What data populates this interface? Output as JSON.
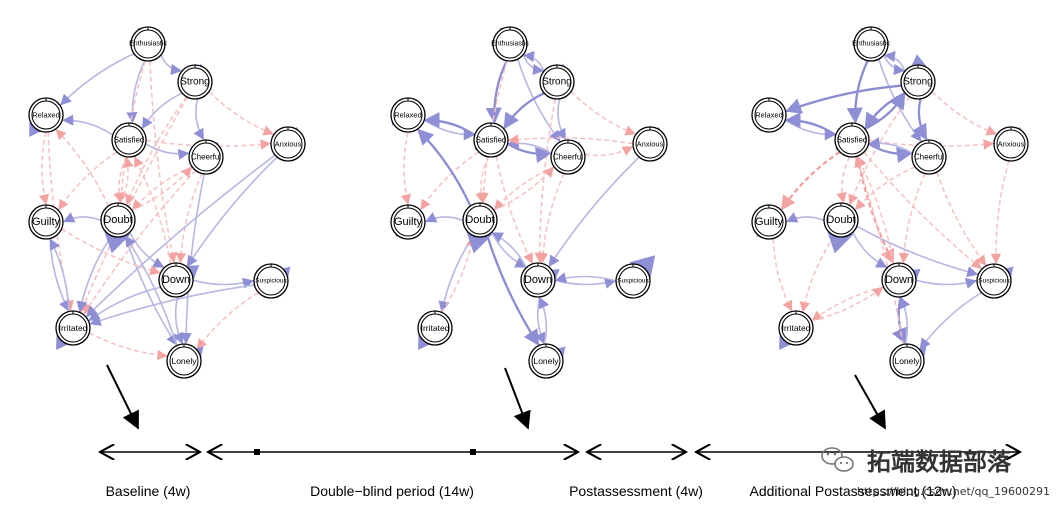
{
  "networks": [
    {
      "id": "baseline",
      "nodes": [
        {
          "id": "enthusiastic",
          "label": "Enthusiastic"
        },
        {
          "id": "strong",
          "label": "Strong"
        },
        {
          "id": "relaxed",
          "label": "Relaxed"
        },
        {
          "id": "satisfied",
          "label": "Satisfied"
        },
        {
          "id": "cheerful",
          "label": "Cheerful"
        },
        {
          "id": "anxious",
          "label": "Anxious"
        },
        {
          "id": "guilty",
          "label": "Guilty"
        },
        {
          "id": "doubt",
          "label": "Doubt"
        },
        {
          "id": "down",
          "label": "Down"
        },
        {
          "id": "suspicious",
          "label": "Suspicious"
        },
        {
          "id": "irritated",
          "label": "Irritated"
        },
        {
          "id": "lonely",
          "label": "Lonely"
        }
      ]
    },
    {
      "id": "double-blind",
      "nodes": [
        {
          "id": "enthusiastic",
          "label": "Enthusiastic"
        },
        {
          "id": "strong",
          "label": "Strong"
        },
        {
          "id": "relaxed",
          "label": "Relaxed"
        },
        {
          "id": "satisfied",
          "label": "Satisfied"
        },
        {
          "id": "cheerful",
          "label": "Cheerful"
        },
        {
          "id": "anxious",
          "label": "Anxious"
        },
        {
          "id": "guilty",
          "label": "Guilty"
        },
        {
          "id": "doubt",
          "label": "Doubt"
        },
        {
          "id": "down",
          "label": "Down"
        },
        {
          "id": "suspicious",
          "label": "Suspicious"
        },
        {
          "id": "irritated",
          "label": "Irritated"
        },
        {
          "id": "lonely",
          "label": "Lonely"
        }
      ]
    },
    {
      "id": "postassessment",
      "nodes": [
        {
          "id": "enthusiastic",
          "label": "Enthusiastic"
        },
        {
          "id": "strong",
          "label": "Strong"
        },
        {
          "id": "relaxed",
          "label": "Relaxed"
        },
        {
          "id": "satisfied",
          "label": "Satisfied"
        },
        {
          "id": "cheerful",
          "label": "Cheerful"
        },
        {
          "id": "anxious",
          "label": "Anxious"
        },
        {
          "id": "guilty",
          "label": "Guilty"
        },
        {
          "id": "doubt",
          "label": "Doubt"
        },
        {
          "id": "down",
          "label": "Down"
        },
        {
          "id": "suspicious",
          "label": "Suspicious"
        },
        {
          "id": "irritated",
          "label": "Irritated"
        },
        {
          "id": "lonely",
          "label": "Lonely"
        }
      ]
    }
  ],
  "edge_colors": {
    "positive": "#6a6ac8",
    "negative": "#f08080",
    "self_loop": "#5555b8"
  },
  "timeline": {
    "phases": [
      {
        "label": "Baseline (4w)"
      },
      {
        "label": "Double−blind period (14w)"
      },
      {
        "label": "Postassessment (4w)"
      },
      {
        "label": "Additional Postassessment (12w)"
      }
    ]
  },
  "watermark": {
    "brand": "拓端数据部落",
    "small": "https://blog.csdn.net/qq_19600291"
  }
}
